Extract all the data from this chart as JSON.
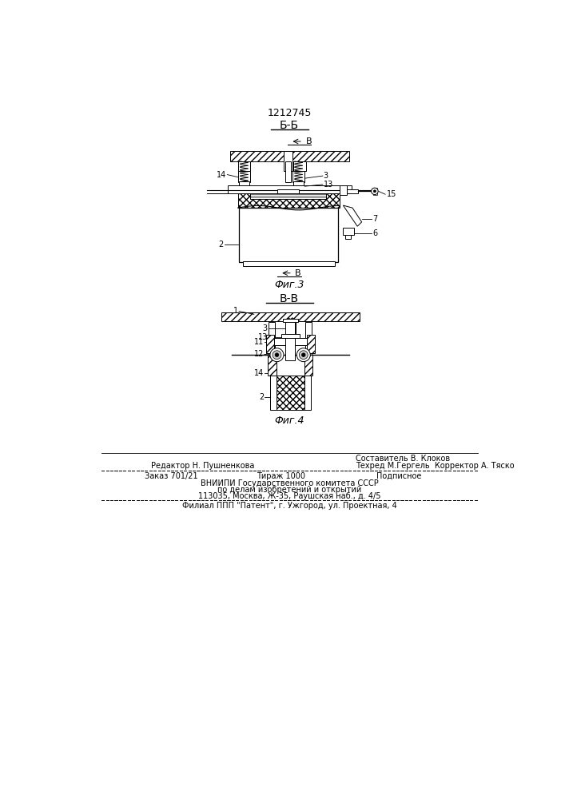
{
  "patent_number": "1212745",
  "fig3_title": "Б-Б",
  "fig4_title": "В-В",
  "fig3_caption": "Фиг.3",
  "fig4_caption": "Фиг.4",
  "bg": "#ffffff",
  "lc": "#000000",
  "footer_left1": "Редактор Н. Пушненкова",
  "footer_right1": "Составитель В. Клоков",
  "footer_right2": "Техред М.Гергель  Корректор А. Тяско",
  "footer_order": "Заказ 701/21",
  "footer_tiraj": "Тираж 1000",
  "footer_podp": "Подписное",
  "footer_vniip1": "ВНИИПИ Государственного комитета СССР",
  "footer_vniip2": "по делам изобретений и открытий",
  "footer_vniip3": "113035, Москва, Ж-35, Раушская наб., д. 4/5",
  "footer_filial": "Филиал ППП \"Патент\", г. Ужгород, ул. Проектная, 4"
}
